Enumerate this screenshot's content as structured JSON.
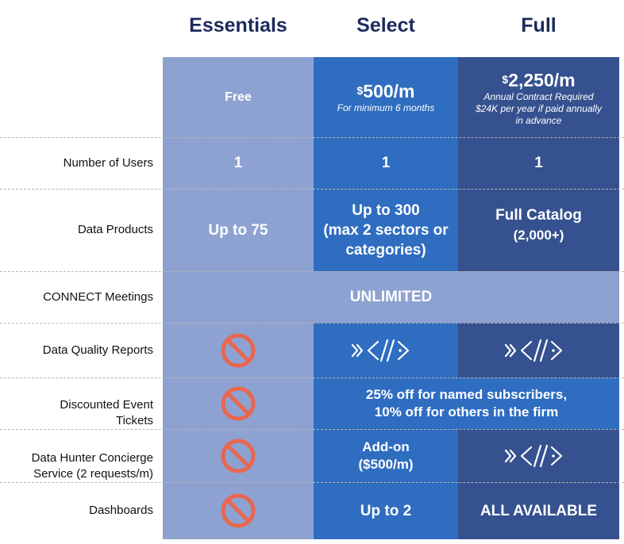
{
  "tiers": {
    "essentials": "Essentials",
    "select": "Select",
    "full": "Full"
  },
  "pricing": {
    "essentials": "Free",
    "select_symbol": "$",
    "select_amount": "500/m",
    "select_note": "For minimum 6 months",
    "full_symbol": "$",
    "full_amount": "2,250/m",
    "full_note_1": "Annual Contract Required",
    "full_note_2": "$24K per year if paid annually",
    "full_note_3": "in advance"
  },
  "rows": {
    "users": {
      "label": "Number of Users",
      "essentials": "1",
      "select": "1",
      "full": "1"
    },
    "products": {
      "label": "Data Products",
      "essentials": "Up to 75",
      "select_1": "Up to 300",
      "select_2": "(max 2 sectors or",
      "select_3": "categories)",
      "full_1": "Full Catalog",
      "full_2": "(2,000+)"
    },
    "meetings": {
      "label": "CONNECT Meetings",
      "all": "UNLIMITED"
    },
    "quality": {
      "label": "Data Quality Reports"
    },
    "tickets": {
      "label_1": "Discounted Event",
      "label_2": "Tickets",
      "merged_1": "25% off for named subscribers,",
      "merged_2": "10% off for others in the firm"
    },
    "concierge": {
      "label_1": "Data Hunter Concierge",
      "label_2": "Service (2 requests/m)",
      "select_1": "Add-on",
      "select_2": "($500/m)"
    },
    "dashboards": {
      "label": "Dashboards",
      "select": "Up to 2",
      "full": "ALL AVAILABLE"
    }
  },
  "colors": {
    "essentials_bg": "#8ea2d2",
    "select_bg": "#2f6dc0",
    "full_bg": "#36518f",
    "header_text": "#1b2a5c",
    "not_included_icon": "#e8674f"
  },
  "icons": {
    "not_included": "prohibited-icon",
    "included": "code-icon"
  }
}
